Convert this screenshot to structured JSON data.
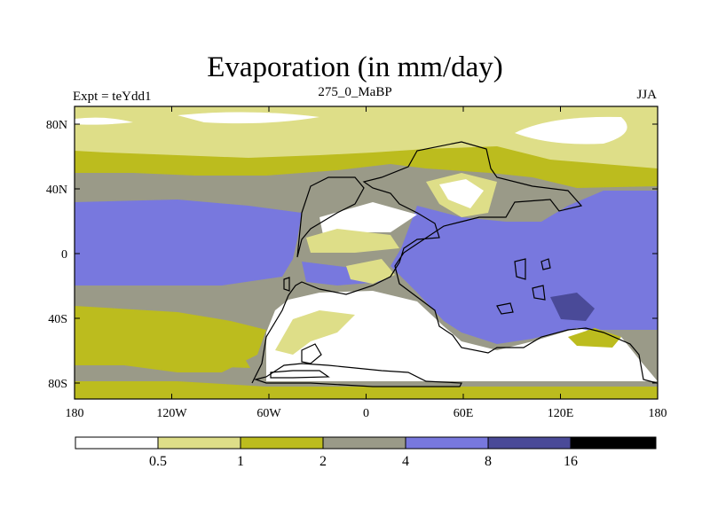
{
  "title": "Evaporation (in mm/day)",
  "experiment_label": "Expt = teYdd1",
  "period_label": "275_0_MaBP",
  "season_label": "JJA",
  "lat_ticks": [
    "80N",
    "40N",
    "0",
    "40S",
    "80S"
  ],
  "lon_ticks": [
    "180",
    "120W",
    "60W",
    "0",
    "60E",
    "120E",
    "180"
  ],
  "colorbar": {
    "levels": [
      "0.5",
      "1",
      "2",
      "4",
      "8",
      "16"
    ],
    "colors": [
      "#ffffff",
      "#dede88",
      "#bcbc1e",
      "#9a9a88",
      "#7878de",
      "#4a4a98",
      "#000000"
    ]
  }
}
